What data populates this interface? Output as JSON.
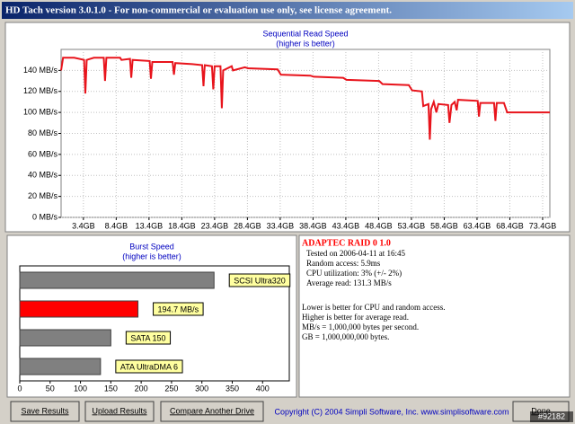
{
  "window": {
    "title": "HD Tach version 3.0.1.0  - For non-commercial or evaluation use only, see license agreement."
  },
  "chart_data": [
    {
      "type": "line",
      "title": "Sequential Read Speed",
      "subtitle": "(higher is better)",
      "x": [
        0,
        0.3,
        2,
        3.5,
        3.7,
        3.9,
        5,
        6.5,
        6.7,
        6.9,
        9,
        9.2,
        10.5,
        10.7,
        10.9,
        13.5,
        13.7,
        13.9,
        17,
        17.2,
        17.4,
        20,
        21.5,
        21.7,
        21.9,
        23,
        23.2,
        23.4,
        24.3,
        24.5,
        24.7,
        26,
        26.2,
        28,
        28.5,
        33,
        33.5,
        38,
        38.5,
        43,
        43.5,
        48.5,
        49,
        53,
        53.5,
        55,
        55.2,
        56,
        56.2,
        56.4,
        56.8,
        57.2,
        57.5,
        59,
        59.2,
        59.5,
        60,
        60.3,
        60.5,
        63.5,
        63.7,
        63.9,
        66,
        66.2,
        66.4,
        67.5,
        68,
        74.5
      ],
      "series": [
        {
          "name": "Sequential Read",
          "color": "#e8141c",
          "values": [
            140,
            152,
            152,
            150,
            118,
            150,
            152,
            152,
            130,
            152,
            152,
            150,
            151,
            133,
            150,
            149,
            132,
            148,
            148,
            136,
            147,
            146,
            145,
            125,
            145,
            144,
            122,
            144,
            144,
            104,
            140,
            144,
            140,
            143,
            142,
            141,
            136,
            135,
            134,
            133,
            131,
            130,
            127,
            126,
            121,
            120,
            106,
            108,
            74,
            103,
            110,
            100,
            108,
            107,
            90,
            107,
            110,
            102,
            112,
            111,
            96,
            109,
            109,
            92,
            109,
            109,
            100,
            100
          ]
        }
      ],
      "xlim": [
        0,
        74.5
      ],
      "xticks": [
        {
          "value": 3.4,
          "label": "3.4GB"
        },
        {
          "value": 8.4,
          "label": "8.4GB"
        },
        {
          "value": 13.4,
          "label": "13.4GB"
        },
        {
          "value": 18.4,
          "label": "18.4GB"
        },
        {
          "value": 23.4,
          "label": "23.4GB"
        },
        {
          "value": 28.4,
          "label": "28.4GB"
        },
        {
          "value": 33.4,
          "label": "33.4GB"
        },
        {
          "value": 38.4,
          "label": "38.4GB"
        },
        {
          "value": 43.4,
          "label": "43.4GB"
        },
        {
          "value": 48.4,
          "label": "48.4GB"
        },
        {
          "value": 53.4,
          "label": "53.4GB"
        },
        {
          "value": 58.4,
          "label": "58.4GB"
        },
        {
          "value": 63.4,
          "label": "63.4GB"
        },
        {
          "value": 68.4,
          "label": "68.4GB"
        },
        {
          "value": 73.4,
          "label": "73.4GB"
        }
      ],
      "ylim": [
        0,
        160
      ],
      "yticks": [
        {
          "value": 0,
          "label": "0 MB/s"
        },
        {
          "value": 20,
          "label": "20 MB/s"
        },
        {
          "value": 40,
          "label": "40 MB/s"
        },
        {
          "value": 60,
          "label": "60 MB/s"
        },
        {
          "value": 80,
          "label": "80 MB/s"
        },
        {
          "value": 100,
          "label": "100 MB/s"
        },
        {
          "value": 120,
          "label": "120 MB/s"
        },
        {
          "value": 140,
          "label": "140 MB/s"
        }
      ],
      "grid": true
    },
    {
      "type": "hbar",
      "title": "Burst Speed",
      "subtitle": "(higher is better)",
      "categories": [
        "SCSI Ultra320",
        "194.7 MB/s",
        "SATA 150",
        "ATA UltraDMA 6"
      ],
      "values": [
        320,
        194.7,
        150,
        133
      ],
      "colors": [
        "#808080",
        "#ff0000",
        "#808080",
        "#808080"
      ],
      "xlim": [
        0,
        444
      ],
      "xticks": [
        0,
        50,
        100,
        150,
        200,
        250,
        300,
        350,
        400
      ]
    }
  ],
  "results": {
    "drive": "ADAPTEC RAID 0 1.0",
    "lines": [
      "Tested on 2006-04-11 at 16:45",
      "Random access: 5.9ms",
      "CPU utilization: 3% (+/- 2%)",
      "Average read: 131.3 MB/s"
    ],
    "notes": [
      "Lower is better for CPU and random access.",
      "Higher is better for average read.",
      "MB/s = 1,000,000 bytes per second.",
      "GB = 1,000,000,000 bytes."
    ]
  },
  "buttons": [
    "Save Results",
    "Upload Results",
    "Compare Another Drive",
    "Done"
  ],
  "copyright": "Copyright (C) 2004 Simpli Software, Inc. www.simplisoftware.com",
  "watermark": "#92182"
}
